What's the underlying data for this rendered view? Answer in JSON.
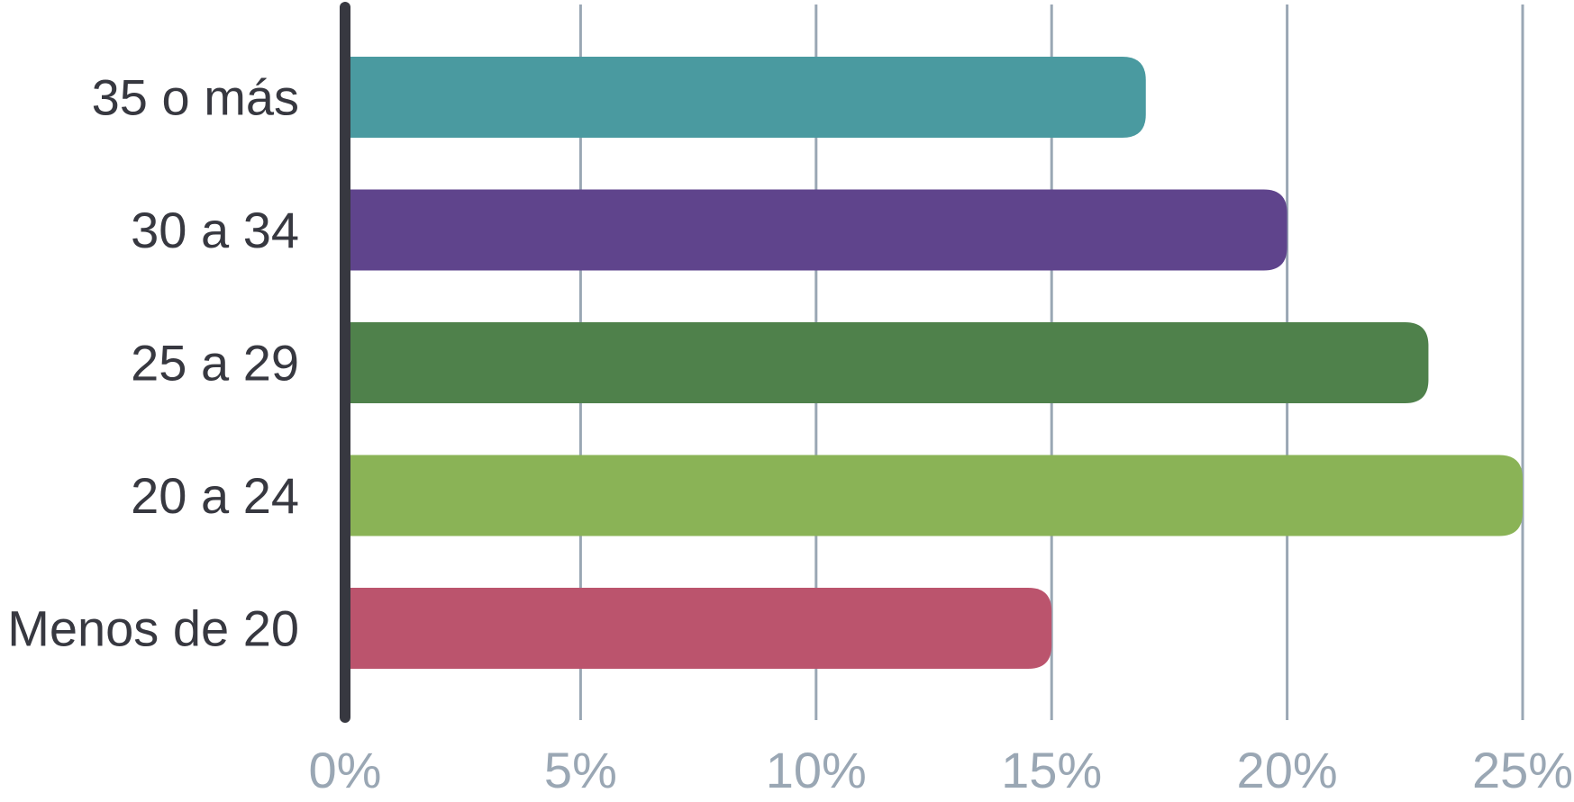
{
  "chart_data": {
    "type": "bar",
    "orientation": "horizontal",
    "categories": [
      "35 o más",
      "30 a 34",
      "25 a 29",
      "20 a 24",
      "Menos de 20"
    ],
    "values": [
      17,
      20,
      23,
      25,
      15
    ],
    "colors": [
      "#4a9aa0",
      "#5f448c",
      "#4f814b",
      "#8ab356",
      "#bb546d"
    ],
    "xlim": [
      0,
      25
    ],
    "xticks": [
      0,
      5,
      10,
      15,
      20,
      25
    ],
    "xtick_labels": [
      "0%",
      "5%",
      "10%",
      "15%",
      "20%",
      "25%"
    ],
    "grid": true,
    "title": "",
    "xlabel": "",
    "ylabel": ""
  }
}
